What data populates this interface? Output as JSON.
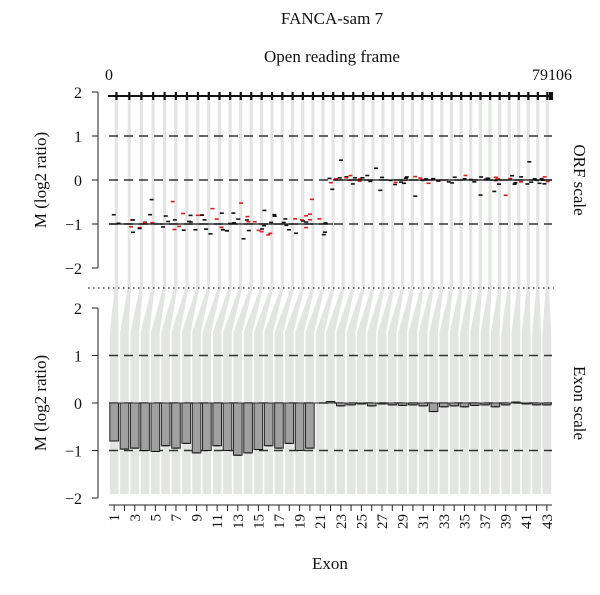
{
  "chart_data": {
    "type": "bar",
    "title": "FANCA-sam 7",
    "subtitle": "Open reading frame",
    "xlabel": "Exon",
    "ylabel_top": "M (log2 ratio)",
    "ylabel_bottom": "M (log2 ratio)",
    "right_label_top": "ORF scale",
    "right_label_bottom": "Exon scale",
    "orf_start_label": "0",
    "orf_end_label": "79106",
    "ylim": [
      -2,
      2
    ],
    "yticks": [
      "2",
      "1",
      "0",
      "−1",
      "−2"
    ],
    "x_tick_labels": [
      "1",
      "3",
      "5",
      "7",
      "9",
      "11",
      "13",
      "15",
      "17",
      "19",
      "21",
      "23",
      "25",
      "27",
      "29",
      "31",
      "33",
      "35",
      "37",
      "39",
      "41",
      "43"
    ],
    "exons": [
      1,
      2,
      3,
      4,
      5,
      6,
      7,
      8,
      9,
      10,
      11,
      12,
      13,
      14,
      15,
      16,
      17,
      18,
      19,
      20,
      21,
      22,
      23,
      24,
      25,
      26,
      27,
      28,
      29,
      30,
      31,
      32,
      33,
      34,
      35,
      36,
      37,
      38,
      39,
      40,
      41,
      42,
      43
    ],
    "exon_scale_values": [
      -0.8,
      -0.97,
      -0.95,
      -1.0,
      -1.02,
      -0.9,
      -0.95,
      -0.85,
      -1.05,
      -1.0,
      -0.9,
      -1.0,
      -1.1,
      -1.05,
      -0.98,
      -0.9,
      -0.95,
      -0.85,
      -1.0,
      -0.95,
      0,
      0.03,
      -0.06,
      -0.04,
      -0.02,
      -0.06,
      -0.02,
      -0.04,
      -0.05,
      -0.04,
      -0.06,
      -0.18,
      -0.08,
      -0.06,
      -0.08,
      -0.05,
      -0.04,
      -0.08,
      -0.04,
      0.02,
      -0.02,
      -0.04,
      -0.04
    ],
    "orf_segment_means": [
      {
        "x0": 0,
        "x1": 40000,
        "y": -1.0
      },
      {
        "x0": 40000,
        "x1": 79106,
        "y": 0.0
      }
    ],
    "reference_lines": [
      1,
      0,
      -1
    ],
    "colors": {
      "bar": "#a0a0a0",
      "band": "#e3e5e3",
      "highlight_probe": "#d42020",
      "probe": "#111111"
    }
  }
}
